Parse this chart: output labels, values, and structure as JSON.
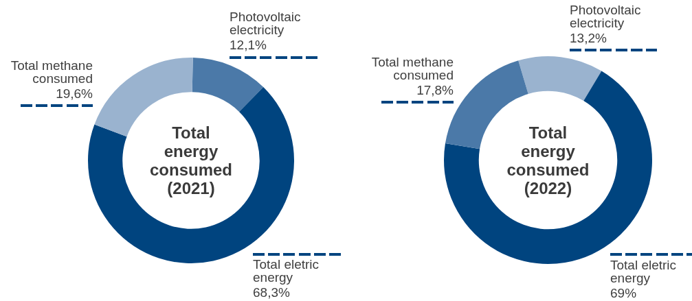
{
  "chart_data": [
    {
      "type": "donut",
      "title": "Total energy consumed (2021)",
      "categories": [
        "Photovoltaic electricity",
        "Total eletric energy",
        "Total methane consumed"
      ],
      "values": [
        12.1,
        68.3,
        19.6
      ],
      "colors": [
        "#4b79a8",
        "#00447f",
        "#9ab3cf"
      ],
      "value_labels": [
        "12,1%",
        "68,3%",
        "19,6%"
      ]
    },
    {
      "type": "donut",
      "title": "Total energy consumed (2022)",
      "categories": [
        "Photovoltaic electricity",
        "Total eletric energy",
        "Total methane consumed"
      ],
      "values": [
        13.2,
        69,
        17.8
      ],
      "colors": [
        "#9ab3cf",
        "#00447f",
        "#4b79a8"
      ],
      "value_labels": [
        "13,2%",
        "69%",
        "17,8%"
      ]
    }
  ]
}
